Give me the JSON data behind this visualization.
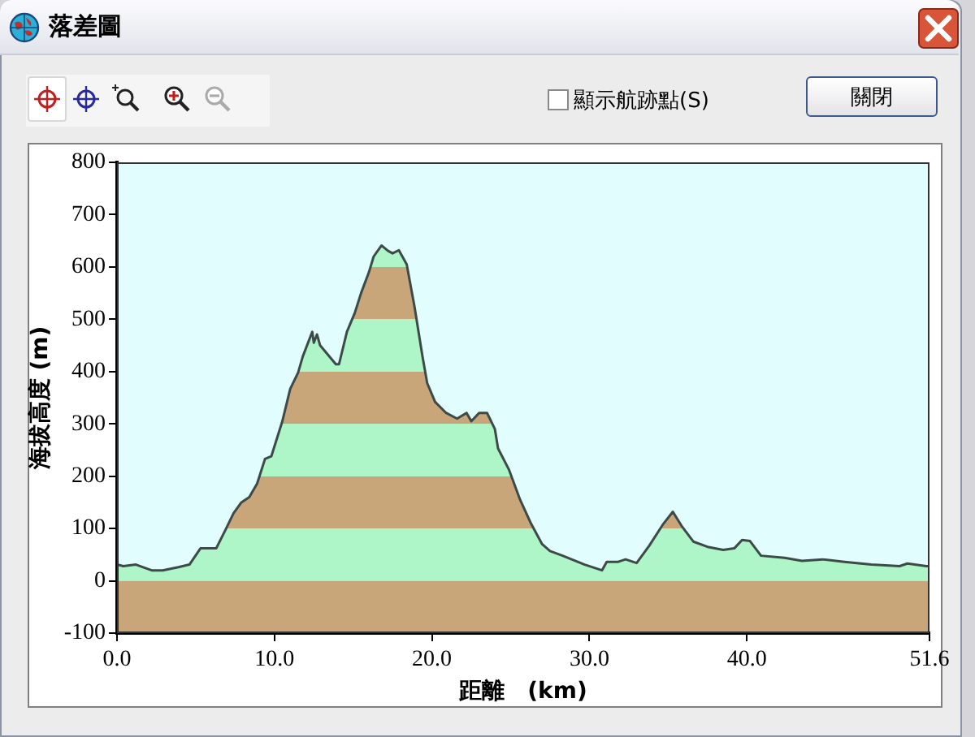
{
  "chart_data": {
    "type": "area",
    "title": "落差圖",
    "xlabel": "距離　(km)",
    "ylabel": "海拔高度 (m)",
    "annotations": [
      "顯示航跡點(S)",
      "關閉"
    ],
    "x": [
      0,
      0.4,
      1.2,
      2.2,
      2.9,
      3.9,
      4.6,
      5.3,
      6.3,
      6.9,
      7.4,
      7.9,
      8.4,
      8.9,
      9.4,
      9.8,
      10.5,
      11.0,
      11.5,
      11.8,
      12.4,
      12.5,
      12.7,
      12.9,
      13.9,
      14.1,
      14.6,
      15.1,
      15.5,
      16.0,
      16.3,
      16.8,
      17.2,
      17.5,
      17.9,
      18.4,
      18.9,
      19.4,
      19.7,
      20.2,
      20.9,
      21.6,
      22.2,
      22.5,
      23.0,
      23.5,
      24.0,
      24.2,
      24.9,
      25.6,
      26.3,
      27.0,
      27.5,
      28.3,
      29.7,
      30.8,
      31.1,
      31.8,
      32.3,
      33.0,
      33.8,
      34.7,
      35.3,
      35.9,
      36.6,
      37.5,
      38.5,
      39.2,
      39.7,
      40.2,
      40.9,
      42.4,
      43.5,
      44.8,
      46.2,
      47.9,
      49.7,
      50.2,
      51.4,
      51.6
    ],
    "values": [
      31,
      28,
      31,
      20,
      20,
      26,
      31,
      62,
      62,
      98,
      129,
      150,
      160,
      186,
      233,
      238,
      305,
      367,
      398,
      429,
      476,
      455,
      471,
      450,
      414,
      414,
      476,
      512,
      550,
      590,
      620,
      641,
      631,
      626,
      632,
      605,
      523,
      429,
      378,
      342,
      321,
      310,
      321,
      305,
      321,
      321,
      290,
      253,
      212,
      155,
      109,
      70,
      57,
      48,
      31,
      20,
      36,
      36,
      41,
      34,
      67,
      109,
      132,
      103,
      75,
      65,
      59,
      62,
      78,
      76,
      48,
      44,
      38,
      41,
      36,
      31,
      28,
      33,
      28,
      28
    ],
    "color": "#aef5c8",
    "xlim": [
      0,
      51.6
    ],
    "xticks": [
      {
        "value": 0,
        "label": "0.0"
      },
      {
        "value": 10,
        "label": "10.0"
      },
      {
        "value": 20,
        "label": "20.0"
      },
      {
        "value": 30,
        "label": "30.0"
      },
      {
        "value": 40,
        "label": "40.0"
      },
      51.6
    ],
    "ylim": [
      -100,
      800
    ],
    "yticks": [
      -100,
      0,
      100,
      200,
      300,
      400,
      500,
      600,
      700,
      800
    ],
    "bands": [
      {
        "axis": "y",
        "from": -100,
        "to": 0,
        "color": "#c8a67a"
      },
      {
        "axis": "y",
        "from": 100,
        "to": 200,
        "color": "#c8a67a"
      },
      {
        "axis": "y",
        "from": 300,
        "to": 400,
        "color": "#c8a67a"
      },
      {
        "axis": "y",
        "from": 500,
        "to": 600,
        "color": "#c8a67a"
      }
    ]
  }
}
